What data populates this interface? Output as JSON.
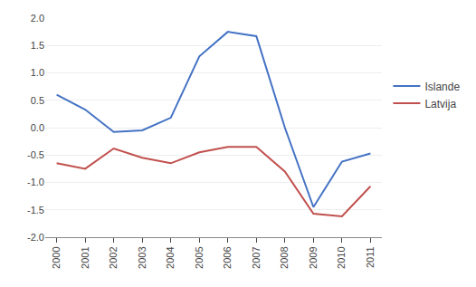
{
  "chart_data": {
    "type": "line",
    "x": [
      2000,
      2001,
      2002,
      2003,
      2004,
      2005,
      2006,
      2007,
      2008,
      2009,
      2010,
      2011
    ],
    "series": [
      {
        "name": "Islande",
        "color": "#4472C4",
        "values": [
          0.6,
          0.33,
          -0.08,
          -0.05,
          0.18,
          1.3,
          1.75,
          1.67,
          0.0,
          -1.45,
          -0.62,
          -0.47
        ]
      },
      {
        "name": "Latvija",
        "color": "#C0504D",
        "values": [
          -0.65,
          -0.75,
          -0.38,
          -0.55,
          -0.65,
          -0.45,
          -0.35,
          -0.35,
          -0.8,
          -1.57,
          -1.62,
          -1.07
        ]
      }
    ],
    "xlim": [
      1999.6,
      2011.4
    ],
    "xticks": [
      2000,
      2001,
      2002,
      2003,
      2004,
      2005,
      2006,
      2007,
      2008,
      2009,
      2010,
      2011
    ],
    "ylim": [
      -2.0,
      2.0
    ],
    "yticks": [
      {
        "value": -2.0,
        "label": "-2.0"
      },
      -1.5,
      {
        "value": -1.0,
        "label": "-1.0"
      },
      -0.5,
      {
        "value": 0.0,
        "label": "0.0"
      },
      0.5,
      {
        "value": 1.0,
        "label": "1.0"
      },
      1.5,
      {
        "value": 2.0,
        "label": "2.0"
      }
    ],
    "grid": true,
    "legend": "right"
  }
}
